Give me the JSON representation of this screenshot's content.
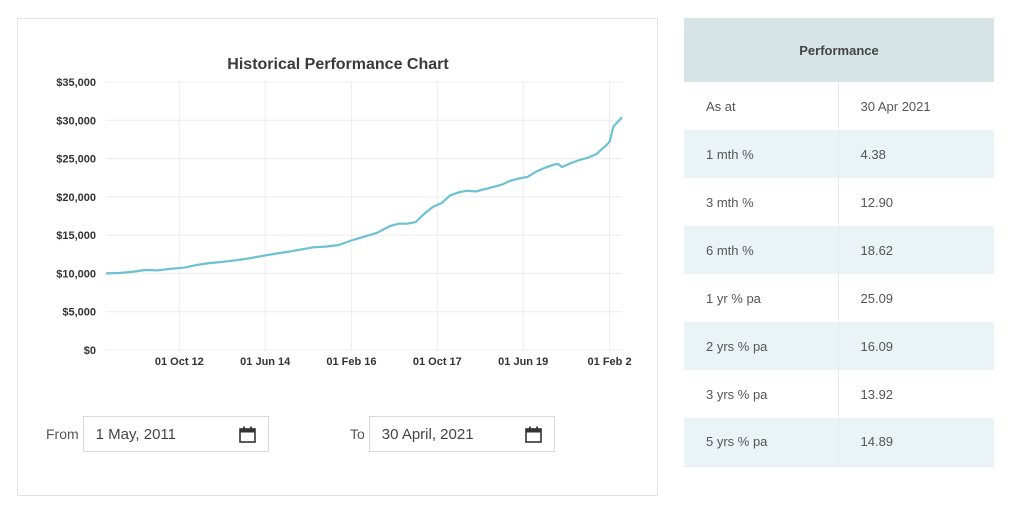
{
  "chart_data": {
    "type": "line",
    "title": "Historical Performance Chart",
    "xlabel": "",
    "ylabel": "",
    "ylim": [
      0,
      35000
    ],
    "yticks": [
      0,
      5000,
      10000,
      15000,
      20000,
      25000,
      30000,
      35000
    ],
    "ytick_labels": [
      "$0",
      "$5,000",
      "$10,000",
      "$15,000",
      "$20,000",
      "$25,000",
      "$30,000",
      "$35,000"
    ],
    "xlim": [
      "2011-05-01",
      "2021-04-30"
    ],
    "xticks": [
      "2012-10-01",
      "2014-06-01",
      "2016-02-01",
      "2017-10-01",
      "2019-06-01",
      "2021-02-01"
    ],
    "xtick_labels": [
      "01 Oct 12",
      "01 Jun 14",
      "01 Feb 16",
      "01 Oct 17",
      "01 Jun 19",
      "01 Feb 2"
    ],
    "grid": true,
    "line_color": "#6cc1d3",
    "series": [
      {
        "x": [
          "2011-05-01",
          "2011-08-01",
          "2011-11-01",
          "2012-02-01",
          "2012-05-01",
          "2012-08-01",
          "2012-11-01",
          "2013-02-01",
          "2013-05-01",
          "2013-08-01",
          "2013-11-01",
          "2014-02-01",
          "2014-05-01",
          "2014-08-01",
          "2014-11-01",
          "2015-02-01",
          "2015-05-01",
          "2015-08-01",
          "2015-11-01",
          "2016-02-01",
          "2016-05-01",
          "2016-08-01",
          "2016-11-01",
          "2017-01-01",
          "2017-03-01",
          "2017-05-01",
          "2017-07-01",
          "2017-09-01",
          "2017-11-01",
          "2018-01-01",
          "2018-03-01",
          "2018-05-01",
          "2018-07-01",
          "2018-09-01",
          "2018-11-01",
          "2019-01-01",
          "2019-03-01",
          "2019-05-01",
          "2019-07-01",
          "2019-09-01",
          "2019-11-01",
          "2020-01-01",
          "2020-02-01",
          "2020-03-01",
          "2020-05-01",
          "2020-07-01",
          "2020-09-01",
          "2020-11-01",
          "2020-12-01",
          "2021-01-01",
          "2021-02-01",
          "2021-03-01",
          "2021-04-30"
        ],
        "values": [
          10000,
          10050,
          10200,
          10450,
          10400,
          10600,
          10750,
          11100,
          11350,
          11500,
          11700,
          11950,
          12250,
          12550,
          12800,
          13100,
          13400,
          13500,
          13700,
          14300,
          14800,
          15300,
          16200,
          16500,
          16500,
          16700,
          17800,
          18700,
          19200,
          20200,
          20600,
          20800,
          20700,
          21000,
          21300,
          21600,
          22100,
          22400,
          22600,
          23300,
          23800,
          24200,
          24300,
          23900,
          24400,
          24800,
          25100,
          25600,
          26100,
          26600,
          27200,
          29200,
          30400
        ]
      }
    ]
  },
  "controls": {
    "from_label": "From",
    "from_value": "1 May, 2011",
    "to_label": "To",
    "to_value": "30 April, 2021"
  },
  "performance": {
    "header": "Performance",
    "rows": [
      {
        "label": "As at",
        "value": "30 Apr 2021"
      },
      {
        "label": "1 mth %",
        "value": "4.38"
      },
      {
        "label": "3 mth %",
        "value": "12.90"
      },
      {
        "label": "6 mth %",
        "value": "18.62"
      },
      {
        "label": "1 yr % pa",
        "value": "25.09"
      },
      {
        "label": "2 yrs % pa",
        "value": "16.09"
      },
      {
        "label": "3 yrs % pa",
        "value": "13.92"
      },
      {
        "label": "5 yrs % pa",
        "value": "14.89"
      }
    ]
  }
}
